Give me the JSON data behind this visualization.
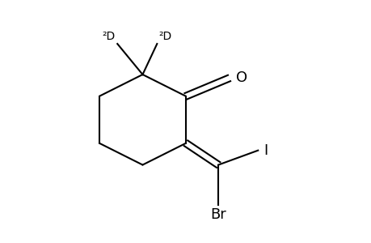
{
  "background_color": "#ffffff",
  "line_color": "#000000",
  "line_width": 1.5,
  "figure_size": [
    4.6,
    3.0
  ],
  "dpi": 100,
  "atoms": {
    "O_label": "O",
    "Br_label": "Br",
    "I_label": "I",
    "D1_label": "²D",
    "D2_label": "²D"
  },
  "font_size_atoms": 13,
  "font_size_isotopes": 10,
  "xlim": [
    1.5,
    8.5
  ],
  "ylim": [
    0.2,
    6.8
  ]
}
